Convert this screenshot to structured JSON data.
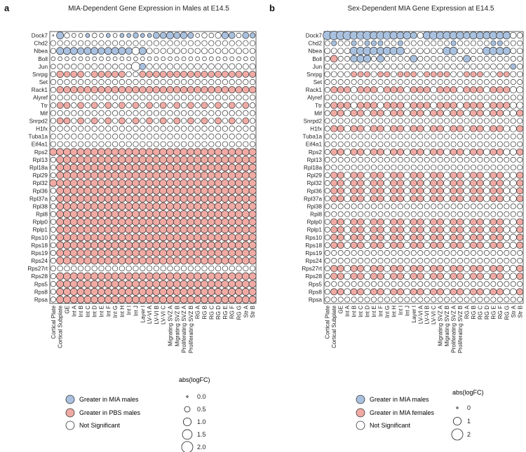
{
  "colors": {
    "mia": "#a9c1df",
    "pbs": "#f0aaa4",
    "ns": "#ffffff",
    "stroke": "#333333"
  },
  "chart_data": [
    {
      "type": "dotplot",
      "panel_label": "a",
      "title": "MIA-Dependent Gene Expression in Males at E14.5",
      "genes": [
        "Dock7",
        "Chd2",
        "Nbea",
        "Boll",
        "Jun",
        "Snrpg",
        "Set",
        "Rack1",
        "Alyref",
        "Ttr",
        "Mif",
        "Snrpd2",
        "H1fx",
        "Tuba1a",
        "Eif4a1",
        "Rps2",
        "Rpl13",
        "Rpl18a",
        "Rpl29",
        "Rpl32",
        "Rpl36",
        "Rpl37a",
        "Rpl38",
        "Rpl8",
        "Rplp0",
        "Rplp1",
        "Rps10",
        "Rps18",
        "Rps19",
        "Rps24",
        "Rps27rt",
        "Rps28",
        "Rps5",
        "Rps8",
        "Rpsa"
      ],
      "cell_types": [
        "Cortical Plate",
        "Cortical Subplate",
        "GE",
        "Int A",
        "Int B",
        "Int C",
        "Int D",
        "Int E",
        "Int F",
        "Int G",
        "Int H",
        "Int I",
        "Int J",
        "Layer I",
        "LV-VI A",
        "LV-VI B",
        "LV-VI C",
        "Migrating SVZ A",
        "Migrating SVZ B",
        "Proliferating SVZ A",
        "Proliferating SVZ B",
        "RG A",
        "RG B",
        "RG C",
        "RG D",
        "RG E",
        "RG F",
        "RG G",
        "Str A",
        "Str B"
      ],
      "size_scale_max": 2.0,
      "legend": {
        "color_entries": [
          "Greater in MIA males",
          "Greater in PBS males",
          "Not Significant"
        ],
        "size_title": "abs(logFC)",
        "size_entries": [
          "0.0",
          "0.5",
          "1.0",
          "1.5",
          "2.0"
        ],
        "size_values": [
          0.0,
          0.5,
          1.0,
          1.5,
          2.0
        ]
      },
      "values": [
        "IB000B00BABBBBBBBBBBB000ABB0BB|0;0.9;0.5;0.3;0.3;0.3;0.4;0.3;0.3;0.3;0.3;0.3;0.5;0.3;0.3;0.7;0.7;0.9;0.7;0.8;0.6;0.3;0.5;0.4;0.6;0.8;0.7;0.4;0.7;0.5|1.5;1;0.3;0.6;0.5;0.7;0.5;0.5;0.7;0.6;0.6;0.6;0.6;0.4;0.4;0.5;0.9;1;0.8;0.9;0.8;0.3;0.6;0.5;0.8;0.9;0.9;0.5;0.7;0.6",
        "0|0.5",
        "0BBBBBBBBBBB0B0000000000000000|0.5;0.9;0.9;0.9;0.8;0.9;0.9;0.8;0.9;0.9;0.9;0.8;1;0.9;0.6;0.5;0.5;0.6;0.6;0.5;0.5;0.5;0.6;0.5;0.5;0.6;0.5;0.6;0.5;0.5",
        "0|0.3",
        "0000000000000B00000000000000000|0.4;0.5;0.5;0.5;0.6;0.5;0.6;0.5;0.6;0.5;0.6;0.5;1.3;0.7;0.6;0.6;0.6;0.6;0.6;0.6;0.6;0.6;0.6;0.6;0.6;0.6;0.6;0.6;0.6;0.6",
        "0RRRR0RRRRR00RRRRRRRRRRRRRRRRR|0.5;0.8;0.6;0.7;0.7;0.5;0.7;0.7;0.7;0.7;0.7;0.5;0.5;0.7;0.7;0.7;0.7;0.7;0.7;0.7;0.7;0.7;0.7;0.7;0.7;0.7;0.7;0.7;0.7;0.7",
        "0|0.5",
        "0RRRRRRRRRRRRRRRRRRRRRRRRRRRRR|0.5;0.8;0.8;0.8;0.8;0.8;0.8;0.8;0.8;0.8;0.8;0.8;0.8;0.8;0.8;0.8;0.8;0.8;0.8;0.8;0.8;0.8;0.8;0.8;0.8;0.8;0.8;0.8;0.8;0.8",
        "0|0.5",
        "0RR0R0R0R0R0R0R0R0R0R0R0R0R0R0|0.5;0.7;0.7;0.5;0.7;0.5;0.7;0.5;0.7;0.5;0.7;0.5;0.7;0.5;0.7;0.5;0.7;0.5;0.7;0.5;0.7;0.5;0.7;0.5;0.7;0.5;0.7;0.5;0.7;0.5",
        "0|0.5",
        "0RR0R0R0R0R0R0R0R0R0R0R0R0R0R0|0.5;0.7;0.7;0.5;0.7;0.5;0.7;0.5;0.7;0.5;0.7;0.5;0.7;0.5;0.7;0.5;0.7;0.5;0.7;0.5;0.7;0.5;0.7;0.5;0.7;0.5;0.7;0.5;0.7;0.5",
        "0|0.5",
        "0|0.5",
        "0|0.5",
        "RRRRRRRRRRRRRRRRRRRRRRRRRRRRRR|0.9",
        "0RRRRRRRRRRRRRRRRRRRRRRRRRRRRR|0.5;0.9",
        "0RRRRRRRRRRRRRRRRRRRRRRRRRRRRR|0.5;0.9",
        "0RRRRRRRRRRRRRRRRRRRRRRRRRRRRR|0.5;0.9",
        "RRRRRRRRRRRRRRRRRRRRRRRRRRRRRR|0.9",
        "0RRRRRRRRRRRRRRRRRRRRRRRRRRRRR|0.5;0.9",
        "0RRRRRRRRRRRRRRRRRRRRRRRRRRRRR|0.5;0.9",
        "0RRRRRRRRRRRRRRRRRRRRRRRRRRRRR|0.5;0.9",
        "0RRRRRRRRRRRRRRRRRRRRRRRRRRRRR|0.5;0.9",
        "0RRRRRRRRRRRRRRRRRRRRRRRRRRRRR|0.5;0.9",
        "0RRRRRRRRRRRRRRRRRRRRRRRRRRRRR|0.5;0.9",
        "0RRRRRRRRRRRRRRRRRRRRRRRRRRRRR|0.5;0.9",
        "0RRRRRRRRRRRRRRRRRRRRRRRRRRRRR|0.5;0.9",
        "0RRRRRRRRRRRRRRRRRRRRRRRRRRRRR|0.5;0.9",
        "0RRRRRRRRRRRRRRRRRRRRRRRRRRRRR|0.5;0.9",
        "0|0.5",
        "0RRRRRRRRRRRRRRRRRRRRRRRRRRRRR|0.5;0.9",
        "0RRRRRRRRRRRRRRRRRRRRRRRRRRRRR|0.5;0.9",
        "0RRRRRRRRRRRRRRRRRRRRRRRRRRRRR|0.5;0.9",
        "0RRRRRRRRRRRRRRRRRRRRRRRRRRRRR|0.5;0.9"
      ]
    },
    {
      "type": "dotplot",
      "panel_label": "b",
      "title": "Sex-Dependent MIA Gene Expression at E14.5",
      "genes": [
        "Dock7",
        "Chd2",
        "Nbea",
        "Boll",
        "Jun",
        "Snrpg",
        "Set",
        "Rack1",
        "Alyref",
        "Ttr",
        "Mif",
        "Snrpd2",
        "H1fx",
        "Tuba1a",
        "Eif4a1",
        "Rps2",
        "Rpl13",
        "Rpl18a",
        "Rpl29",
        "Rpl32",
        "Rpl36",
        "Rpl37a",
        "Rpl38",
        "Rpl8",
        "Rplp0",
        "Rplp1",
        "Rps10",
        "Rps18",
        "Rps19",
        "Rps24",
        "Rps27rt",
        "Rps28",
        "Rps5",
        "Rps8",
        "Rpsa"
      ],
      "cell_types": [
        "Cortical Plate",
        "Cortical Subplate",
        "GE",
        "Int A",
        "Int B",
        "Int C",
        "Int D",
        "Int E",
        "Int F",
        "Int G",
        "Int H",
        "Int I",
        "Int J",
        "Layer I",
        "LV-VI A",
        "LV-VI B",
        "LV-VI C",
        "Migrating SVZ A",
        "Migrating SVZ B",
        "Proliferating SVZ A",
        "Proliferating SVZ B",
        "RG A",
        "RG B",
        "RG C",
        "RG D",
        "RG E",
        "RG F",
        "RG G",
        "Str A",
        "Str B"
      ],
      "size_scale_max": 2.0,
      "legend": {
        "color_entries": [
          "Greater in MIA males",
          "Greater in MIA females",
          "Not Significant"
        ],
        "size_title": "abs(logFC)",
        "size_entries": [
          "0",
          "1",
          "2"
        ],
        "size_values": [
          0,
          1,
          2
        ]
      },
      "values": [
        "BBBBBBBBBBBBBB0BBBBBBBBBBBBB00|2;1.8;1.5;1.5;1.2;1.2;1.3;1.1;1.2;1.2;1.1;1;1.1;0.8;0.7;1.1;1.2;1.1;1.1;1.1;1.1;0.9;1;1;1;1.1;1;1;0.7;0.6",
        "0B00B0BBB00B0000000B00000BB000|0.5",
        "0000BBBBBBBB000000BB0000BBBB00|0.6;0.6;0.6;0.6;1.1;1.1;1.2;1.1;1;1.1;1.1;1.1;0.6;0.6;0.6;0.6;0.6;0.6;1.1;1.1;0.6;0.6;0.6;0.6;1.1;1.1;1;1;0.6;0.6",
        "0R00BBB0B0000B0000000B00000000|0.5;0.9;0.5;0.5;0.9;1;1;0.5;0.9;0.5;0.5;0.5;0.5;0.9;0.5;0.5;0.5;0.5;0.5;0.5;0.5;0.9;0.5;0.5;0.5;0.5;0.5;0.5;0.5;0.5",
        "0000000000000000000000000000B0|0.6",
        "0000RRR0RR0RRR0RRRR00RRR00RR00|0.6",
        "0|0.5",
        "0RRR0RRR0RRR0RRR0RRR0RRR0RRR00|0.5;0.8",
        "0|0.5",
        "0RRR0RRR0RRR0RRR0RRR0RRR0RRR00|0.5;0.8",
        "0RR0RR0RR0RR0RR0RR0RR0RR0RR00R|0.5;0.8",
        "0|0.5",
        "0RR0RR0RR0RR0RR0RR0RR0RR0RR00R|0.5;0.8",
        "0|0.5",
        "0|0.5",
        "0RR0RR0RR0RR0RR0RR0RR0RR0RR00R|0.5;0.8",
        "0|0.5",
        "0|0.5",
        "0RR0RR0RR0RR0RR0RR0RR0RR0RR00R|0.5;0.8",
        "0RR0RR0RR0RR0RR0RR0RR0RR0RR00R|0.5;0.8",
        "0RR0RR0RR0RR0RR0RR0RR0RR0RR00R|0.5;0.8",
        "0RR0RR0RR0RR0RR0RR0RR0RR0RR00R|0.5;0.8",
        "0|0.5",
        "0|0.5",
        "0RR0RR0RR0RR0RR0RR0RR0RR0RR00R|0.5;0.8",
        "0RR0RR0RR0RR0RR0RR0RR0RR0RR00R|0.5;0.8",
        "0RR0RR0RR0RR0RR0RR0RR0RR0RR00R|0.5;0.8",
        "0RR0RR0RR0RR0RR0RR0RR0RR0RR00R|0.5;0.8",
        "0|0.5",
        "0|0.5",
        "0RR0RR0RR0RR0RR0RR0RR0RR0RR00R|0.5;0.8",
        "0RR0RR0RR0RR0RR0RR0RR0RR0RR00R|0.5;0.8",
        "0|0.5",
        "0RR0RR0RR0RR0RR0RR0RR0RR0RR00R|0.5;0.8",
        "0|0.5"
      ]
    }
  ]
}
